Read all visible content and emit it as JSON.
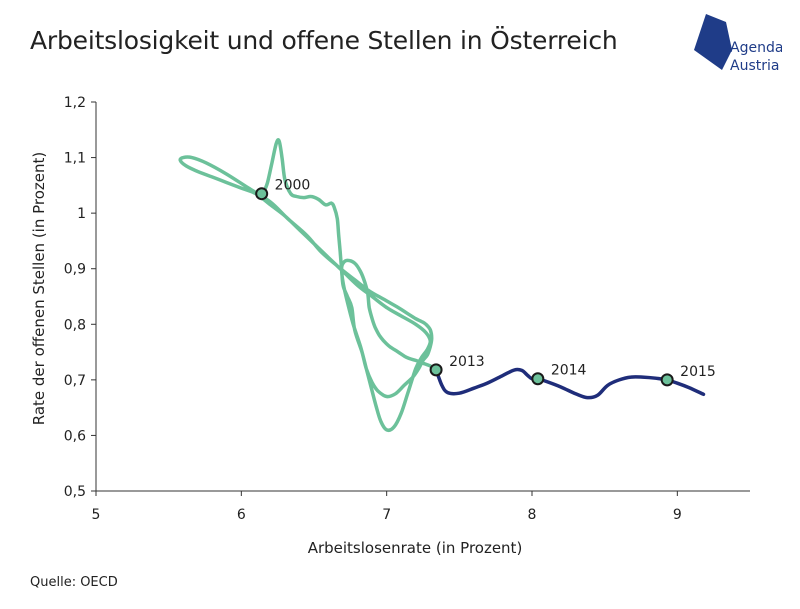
{
  "title": "Arbeitslosigkeit und offene Stellen in Österreich",
  "source": "Quelle: OECD",
  "logo": {
    "line1": "Agenda",
    "line2": "Austria",
    "color": "#1f3c88"
  },
  "chart_data": {
    "type": "line",
    "title": "Arbeitslosigkeit und offene Stellen in Österreich",
    "xlabel": "Arbeitslosenrate (in Prozent)",
    "ylabel": "Rate der offenen Stellen (in Prozent)",
    "xlim": [
      5,
      9.5
    ],
    "ylim": [
      0.5,
      1.2
    ],
    "xticks": [
      5,
      6,
      7,
      8,
      9
    ],
    "xtick_labels": [
      "5",
      "6",
      "7",
      "8",
      "9"
    ],
    "yticks": [
      0.5,
      0.6,
      0.7,
      0.8,
      0.9,
      1.0,
      1.1,
      1.2
    ],
    "ytick_labels": [
      "0,5",
      "0,6",
      "0,7",
      "0,8",
      "0,9",
      "1",
      "1,1",
      "1,2"
    ],
    "grid": false,
    "series": [
      {
        "color": "#6cc19a",
        "x": [
          6.15,
          6.18,
          6.21,
          6.24,
          6.26,
          6.28,
          6.3,
          6.34,
          6.38,
          6.43,
          6.48,
          6.53,
          6.58,
          6.62,
          6.64,
          6.66,
          6.67,
          6.68,
          6.69,
          6.7,
          6.73,
          6.76,
          6.78,
          6.83,
          6.86,
          6.9,
          6.94,
          7.0,
          7.06,
          7.12,
          7.18,
          7.22,
          7.25,
          7.28,
          7.3,
          7.31,
          7.3,
          7.27,
          7.24,
          7.2,
          7.14,
          7.08,
          6.98,
          6.88,
          6.78,
          6.66,
          6.55,
          6.45,
          6.32,
          6.2,
          6.05,
          5.9,
          5.76,
          5.66,
          5.6,
          5.58,
          5.62,
          5.7,
          5.8,
          5.9,
          6.0,
          6.1,
          6.2,
          6.3,
          6.4,
          6.5,
          6.6,
          6.7,
          6.8,
          6.9,
          7.0,
          7.1,
          7.2,
          7.27,
          7.3,
          7.28,
          7.24,
          7.2,
          7.15,
          7.1,
          7.05,
          7.0,
          6.96,
          6.93,
          6.9,
          6.86,
          6.82,
          6.77,
          6.73,
          6.7,
          6.69,
          6.7,
          6.73,
          6.78,
          6.82,
          6.85,
          6.87,
          6.88,
          6.9,
          6.92,
          6.95,
          6.98,
          7.02,
          7.08,
          7.14,
          7.2,
          7.25,
          7.3,
          7.34
        ],
        "y": [
          1.035,
          1.055,
          1.09,
          1.125,
          1.13,
          1.1,
          1.06,
          1.035,
          1.03,
          1.028,
          1.03,
          1.025,
          1.015,
          1.018,
          1.01,
          0.99,
          0.96,
          0.93,
          0.9,
          0.87,
          0.85,
          0.83,
          0.79,
          0.75,
          0.72,
          0.695,
          0.68,
          0.67,
          0.675,
          0.69,
          0.705,
          0.72,
          0.735,
          0.745,
          0.76,
          0.775,
          0.79,
          0.8,
          0.805,
          0.81,
          0.82,
          0.83,
          0.845,
          0.86,
          0.88,
          0.905,
          0.93,
          0.96,
          0.99,
          1.02,
          1.045,
          1.07,
          1.09,
          1.1,
          1.1,
          1.095,
          1.085,
          1.075,
          1.065,
          1.055,
          1.045,
          1.035,
          1.015,
          0.995,
          0.97,
          0.945,
          0.92,
          0.895,
          0.87,
          0.85,
          0.83,
          0.815,
          0.8,
          0.785,
          0.77,
          0.755,
          0.74,
          0.72,
          0.68,
          0.64,
          0.615,
          0.61,
          0.625,
          0.65,
          0.68,
          0.72,
          0.76,
          0.8,
          0.84,
          0.875,
          0.9,
          0.91,
          0.915,
          0.91,
          0.895,
          0.875,
          0.855,
          0.83,
          0.81,
          0.795,
          0.78,
          0.77,
          0.76,
          0.75,
          0.74,
          0.735,
          0.73,
          0.725,
          0.718
        ]
      },
      {
        "color": "#1f2d7a",
        "x": [
          7.34,
          7.38,
          7.42,
          7.5,
          7.6,
          7.7,
          7.8,
          7.88,
          7.93,
          7.97,
          8.0,
          8.04,
          8.1,
          8.2,
          8.3,
          8.38,
          8.45,
          8.52,
          8.6,
          8.68,
          8.76,
          8.85,
          8.93,
          9.0,
          9.08,
          9.18
        ],
        "y": [
          0.718,
          0.69,
          0.677,
          0.676,
          0.685,
          0.695,
          0.708,
          0.718,
          0.717,
          0.708,
          0.702,
          0.702,
          0.697,
          0.687,
          0.675,
          0.668,
          0.672,
          0.69,
          0.7,
          0.705,
          0.705,
          0.703,
          0.7,
          0.694,
          0.686,
          0.674
        ]
      }
    ],
    "annotations": [
      {
        "label": "2000",
        "x": 6.14,
        "y": 1.035
      },
      {
        "label": "2013",
        "x": 7.34,
        "y": 0.718
      },
      {
        "label": "2014",
        "x": 8.04,
        "y": 0.702
      },
      {
        "label": "2015",
        "x": 8.93,
        "y": 0.7
      }
    ],
    "marker_fill": "#6cc19a"
  }
}
